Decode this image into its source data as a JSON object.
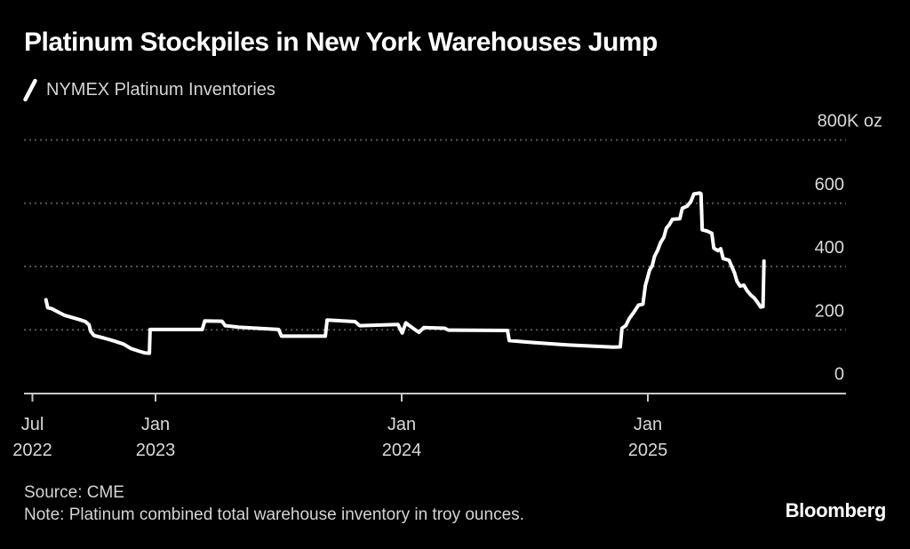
{
  "header": {
    "title": "Platinum Stockpiles in New York Warehouses Jump",
    "legend_label": "NYMEX Platinum Inventories"
  },
  "footer": {
    "source": "Source: CME",
    "note": "Note: Platinum combined total warehouse inventory in troy ounces.",
    "logo": "Bloomberg"
  },
  "colors": {
    "background": "#000000",
    "series_line": "#ffffff",
    "gridline": "#555555",
    "axis_line": "#c8c8c8",
    "axis_label": "#d9d9d9",
    "title": "#ffffff"
  },
  "chart_data": {
    "type": "line",
    "title": "Platinum Stockpiles in New York Warehouses Jump",
    "series_name": "NYMEX Platinum Inventories",
    "unit": "thousand troy ounces",
    "ylim": [
      0,
      800
    ],
    "grid": "horizontal-dotted",
    "legend_position": "top-left",
    "y_ticks": [
      {
        "value": 800,
        "label": "800K oz"
      },
      {
        "value": 600,
        "label": "600"
      },
      {
        "value": 400,
        "label": "400"
      },
      {
        "value": 200,
        "label": "200"
      },
      {
        "value": 0,
        "label": "0"
      }
    ],
    "x_ticks": [
      {
        "t": 2022.5,
        "month": "Jul",
        "year": "2022"
      },
      {
        "t": 2023.0,
        "month": "Jan",
        "year": "2023"
      },
      {
        "t": 2024.0,
        "month": "Jan",
        "year": "2024"
      },
      {
        "t": 2025.0,
        "month": "Jan",
        "year": "2025"
      }
    ],
    "points": [
      [
        2022.555,
        295
      ],
      [
        2022.562,
        270
      ],
      [
        2022.58,
        266
      ],
      [
        2022.6,
        258
      ],
      [
        2022.63,
        246
      ],
      [
        2022.67,
        237
      ],
      [
        2022.7,
        230
      ],
      [
        2022.715,
        226
      ],
      [
        2022.73,
        216
      ],
      [
        2022.737,
        195
      ],
      [
        2022.75,
        182
      ],
      [
        2022.79,
        174
      ],
      [
        2022.83,
        165
      ],
      [
        2022.87,
        155
      ],
      [
        2022.9,
        141
      ],
      [
        2022.935,
        132
      ],
      [
        2022.957,
        127
      ],
      [
        2022.975,
        126
      ],
      [
        2022.978,
        201
      ],
      [
        2023.19,
        201
      ],
      [
        2023.2,
        228
      ],
      [
        2023.27,
        227
      ],
      [
        2023.283,
        213
      ],
      [
        2023.34,
        208
      ],
      [
        2023.5,
        201
      ],
      [
        2023.512,
        180
      ],
      [
        2023.69,
        180
      ],
      [
        2023.697,
        231
      ],
      [
        2023.81,
        226
      ],
      [
        2023.83,
        213
      ],
      [
        2023.985,
        217
      ],
      [
        2024.002,
        190
      ],
      [
        2024.017,
        222
      ],
      [
        2024.03,
        214
      ],
      [
        2024.05,
        203
      ],
      [
        2024.07,
        192
      ],
      [
        2024.09,
        207
      ],
      [
        2024.175,
        205
      ],
      [
        2024.19,
        199
      ],
      [
        2024.43,
        198
      ],
      [
        2024.437,
        166
      ],
      [
        2024.53,
        160
      ],
      [
        2024.68,
        152
      ],
      [
        2024.86,
        145
      ],
      [
        2024.888,
        146
      ],
      [
        2024.895,
        205
      ],
      [
        2024.91,
        213
      ],
      [
        2024.925,
        236
      ],
      [
        2024.94,
        252
      ],
      [
        2024.952,
        266
      ],
      [
        2024.962,
        278
      ],
      [
        2024.98,
        281
      ],
      [
        2024.99,
        340
      ],
      [
        2025.0,
        368
      ],
      [
        2025.007,
        388
      ],
      [
        2025.018,
        403
      ],
      [
        2025.027,
        432
      ],
      [
        2025.04,
        452
      ],
      [
        2025.052,
        476
      ],
      [
        2025.065,
        492
      ],
      [
        2025.075,
        521
      ],
      [
        2025.087,
        532
      ],
      [
        2025.1,
        549
      ],
      [
        2025.13,
        551
      ],
      [
        2025.14,
        584
      ],
      [
        2025.16,
        591
      ],
      [
        2025.175,
        606
      ],
      [
        2025.187,
        629
      ],
      [
        2025.21,
        632
      ],
      [
        2025.216,
        630
      ],
      [
        2025.221,
        516
      ],
      [
        2025.24,
        512
      ],
      [
        2025.26,
        505
      ],
      [
        2025.268,
        458
      ],
      [
        2025.285,
        450
      ],
      [
        2025.296,
        456
      ],
      [
        2025.306,
        425
      ],
      [
        2025.33,
        420
      ],
      [
        2025.342,
        398
      ],
      [
        2025.352,
        380
      ],
      [
        2025.362,
        353
      ],
      [
        2025.375,
        338
      ],
      [
        2025.39,
        341
      ],
      [
        2025.403,
        324
      ],
      [
        2025.418,
        310
      ],
      [
        2025.433,
        300
      ],
      [
        2025.448,
        284
      ],
      [
        2025.458,
        272
      ],
      [
        2025.468,
        273
      ],
      [
        2025.472,
        417
      ]
    ]
  }
}
